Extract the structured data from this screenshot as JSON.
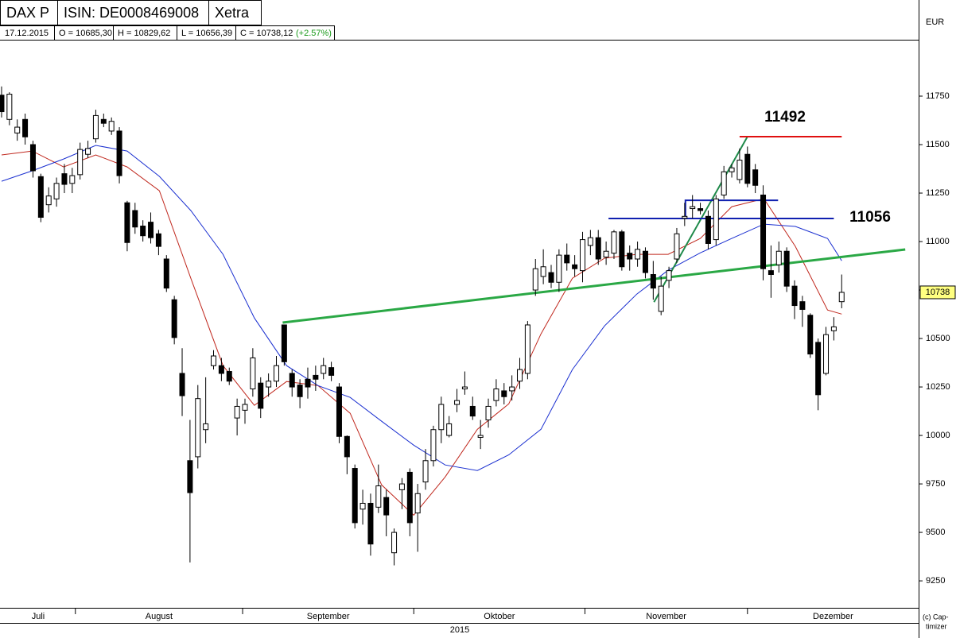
{
  "header": {
    "name": "DAX P",
    "isin": "ISIN: DE0008469008",
    "exchange": "Xetra",
    "currency": "EUR",
    "date": "17.12.2015",
    "open": "O = 10685,30",
    "high": "H = 10829,62",
    "low": "L = 10656,39",
    "close": "C = 10738,12",
    "change": "(+2.57%)"
  },
  "chart_data": {
    "type": "candlestick",
    "year_label": "2015",
    "copyright": [
      "(c) Cap-",
      "timizer"
    ],
    "months": [
      "Juli",
      "August",
      "September",
      "Oktober",
      "November",
      "Dezember"
    ],
    "xlim": [
      -0.2,
      116.8
    ],
    "xticks": [
      9.4,
      30.7,
      52.5,
      74.3,
      95.0
    ],
    "ylim": [
      9111,
      12041
    ],
    "yticks": [
      9250,
      9500,
      9750,
      10000,
      10250,
      10500,
      10750,
      11000,
      11250,
      11500,
      11750
    ],
    "up_color": "#ffffff",
    "down_color": "#000000",
    "ohlc": [
      [
        11755,
        11800,
        11640,
        11670
      ],
      [
        11630,
        11770,
        11600,
        11760
      ],
      [
        11560,
        11630,
        11520,
        11590
      ],
      [
        11630,
        11660,
        11500,
        11540
      ],
      [
        11500,
        11520,
        11330,
        11365
      ],
      [
        11335,
        11350,
        11100,
        11125
      ],
      [
        11190,
        11280,
        11150,
        11235
      ],
      [
        11220,
        11330,
        11180,
        11300
      ],
      [
        11350,
        11400,
        11250,
        11295
      ],
      [
        11300,
        11380,
        11250,
        11340
      ],
      [
        11345,
        11510,
        11320,
        11475
      ],
      [
        11450,
        11520,
        11430,
        11480
      ],
      [
        11530,
        11680,
        11510,
        11650
      ],
      [
        11630,
        11660,
        11590,
        11610
      ],
      [
        11570,
        11640,
        11550,
        11620
      ],
      [
        11570,
        11590,
        11300,
        11340
      ],
      [
        11200,
        11210,
        10950,
        10995
      ],
      [
        11160,
        11200,
        11040,
        11075
      ],
      [
        11080,
        11110,
        11000,
        11030
      ],
      [
        11100,
        11150,
        10990,
        11020
      ],
      [
        11040,
        11060,
        10930,
        10975
      ],
      [
        10910,
        10930,
        10740,
        10760
      ],
      [
        10700,
        10720,
        10470,
        10505
      ],
      [
        10320,
        10450,
        10100,
        10205
      ],
      [
        9870,
        10080,
        9345,
        9705
      ],
      [
        9890,
        10260,
        9830,
        10190
      ],
      [
        10030,
        10300,
        9960,
        10060
      ],
      [
        10360,
        10440,
        10340,
        10410
      ],
      [
        10360,
        10400,
        10280,
        10320
      ],
      [
        10330,
        10350,
        10260,
        10280
      ],
      [
        10090,
        10190,
        10000,
        10150
      ],
      [
        10130,
        10190,
        10060,
        10160
      ],
      [
        10240,
        10450,
        10200,
        10400
      ],
      [
        10270,
        10300,
        10090,
        10140
      ],
      [
        10250,
        10320,
        10200,
        10280
      ],
      [
        10280,
        10410,
        10250,
        10360
      ],
      [
        10570,
        10570,
        10360,
        10380
      ],
      [
        10320,
        10340,
        10200,
        10250
      ],
      [
        10260,
        10290,
        10140,
        10200
      ],
      [
        10290,
        10350,
        10190,
        10250
      ],
      [
        10310,
        10360,
        10230,
        10290
      ],
      [
        10320,
        10400,
        10290,
        10360
      ],
      [
        10350,
        10380,
        10280,
        10310
      ],
      [
        10250,
        10270,
        9960,
        9995
      ],
      [
        9995,
        10000,
        9800,
        9890
      ],
      [
        9830,
        9850,
        9520,
        9550
      ],
      [
        9620,
        9720,
        9540,
        9650
      ],
      [
        9650,
        9700,
        9380,
        9440
      ],
      [
        9630,
        9850,
        9600,
        9740
      ],
      [
        9680,
        9720,
        9480,
        9590
      ],
      [
        9395,
        9520,
        9330,
        9500
      ],
      [
        9720,
        9780,
        9620,
        9750
      ],
      [
        9810,
        9830,
        9480,
        9550
      ],
      [
        9600,
        9750,
        9400,
        9700
      ],
      [
        9760,
        9930,
        9720,
        9870
      ],
      [
        9870,
        10050,
        9840,
        10030
      ],
      [
        10030,
        10200,
        9960,
        10160
      ],
      [
        10000,
        10100,
        9990,
        10060
      ],
      [
        10160,
        10240,
        10120,
        10180
      ],
      [
        10240,
        10330,
        10210,
        10250
      ],
      [
        10150,
        10200,
        10080,
        10100
      ],
      [
        9990,
        10080,
        9930,
        10000
      ],
      [
        10080,
        10190,
        10040,
        10150
      ],
      [
        10180,
        10290,
        10150,
        10240
      ],
      [
        10230,
        10270,
        10160,
        10200
      ],
      [
        10230,
        10310,
        10180,
        10250
      ],
      [
        10280,
        10400,
        10240,
        10340
      ],
      [
        10320,
        10590,
        10290,
        10570
      ],
      [
        10750,
        10910,
        10720,
        10860
      ],
      [
        10820,
        10960,
        10780,
        10870
      ],
      [
        10840,
        10880,
        10760,
        10790
      ],
      [
        10790,
        10960,
        10740,
        10930
      ],
      [
        10930,
        10990,
        10850,
        10890
      ],
      [
        10880,
        10930,
        10820,
        10860
      ],
      [
        10850,
        11050,
        10790,
        11010
      ],
      [
        10980,
        11060,
        10930,
        11020
      ],
      [
        11020,
        11060,
        10880,
        10910
      ],
      [
        10920,
        11000,
        10880,
        10950
      ],
      [
        10940,
        11060,
        10910,
        11050
      ],
      [
        11050,
        11060,
        10850,
        10870
      ],
      [
        10940,
        10980,
        10850,
        10910
      ],
      [
        10910,
        11000,
        10870,
        10960
      ],
      [
        10950,
        10970,
        10810,
        10840
      ],
      [
        10830,
        10900,
        10700,
        10760
      ],
      [
        10640,
        10820,
        10620,
        10770
      ],
      [
        10800,
        10870,
        10760,
        10850
      ],
      [
        10910,
        11070,
        10890,
        11040
      ],
      [
        11120,
        11200,
        11080,
        11130
      ],
      [
        11170,
        11240,
        11120,
        11180
      ],
      [
        11170,
        11200,
        11140,
        11160
      ],
      [
        11130,
        11160,
        10960,
        10990
      ],
      [
        11010,
        11240,
        10980,
        11220
      ],
      [
        11240,
        11390,
        11220,
        11360
      ],
      [
        11360,
        11400,
        11330,
        11380
      ],
      [
        11320,
        11480,
        11300,
        11420
      ],
      [
        11450,
        11490,
        11280,
        11300
      ],
      [
        11370,
        11400,
        11250,
        11290
      ],
      [
        11240,
        11290,
        10800,
        10860
      ],
      [
        10850,
        10980,
        10710,
        10830
      ],
      [
        10880,
        11000,
        10840,
        10950
      ],
      [
        10950,
        10970,
        10740,
        10770
      ],
      [
        10770,
        10800,
        10600,
        10670
      ],
      [
        10690,
        10720,
        10560,
        10650
      ],
      [
        10620,
        10630,
        10400,
        10420
      ],
      [
        10480,
        10500,
        10130,
        10210
      ],
      [
        10320,
        10560,
        10310,
        10520
      ],
      [
        10540,
        10610,
        10490,
        10560
      ],
      [
        10690,
        10830,
        10656,
        10738
      ]
    ],
    "last_price_label": "10738",
    "ma": [
      {
        "color": "#c0281e",
        "x": [
          0,
          3.9,
          7.9,
          12.0,
          16.0,
          20.1,
          24.1,
          28.2,
          32.2,
          36.3,
          40.3,
          44.4,
          48.4,
          52.5,
          56.5,
          60.6,
          64.6,
          68.7,
          72.7,
          76.8,
          80.9,
          84.9,
          89.0,
          93.0,
          97.1,
          101.1,
          105.2,
          107
        ],
        "values": [
          11447,
          11467,
          11385,
          11447,
          11385,
          11262,
          10811,
          10360,
          10155,
          10278,
          10257,
          10114,
          9745,
          9589,
          9786,
          10032,
          10163,
          10524,
          10811,
          10914,
          10934,
          10934,
          11016,
          11180,
          11221,
          10975,
          10647,
          10626
        ]
      },
      {
        "color": "#1a2fd0",
        "x": [
          0,
          3.9,
          7.9,
          12.0,
          16.0,
          20.1,
          24.1,
          28.2,
          32.2,
          36.3,
          40.3,
          44.4,
          48.4,
          52.5,
          56.5,
          60.6,
          64.6,
          68.7,
          72.7,
          76.8,
          80.9,
          84.9,
          89.0,
          93.0,
          97.1,
          101.1,
          105.2,
          107
        ],
        "values": [
          11311,
          11365,
          11426,
          11496,
          11467,
          11336,
          11160,
          10934,
          10606,
          10360,
          10257,
          10196,
          10073,
          9950,
          9848,
          9819,
          9900,
          10032,
          10340,
          10565,
          10729,
          10852,
          10942,
          11016,
          11090,
          11078,
          11016,
          10901
        ]
      }
    ],
    "trendlines": [
      {
        "color": "#2aa845",
        "width": 3,
        "x": [
          35.8,
          115.1
        ],
        "values": [
          10582,
          10959
        ]
      },
      {
        "color": "#1f8a4a",
        "width": 2,
        "x": [
          83.1,
          95.0
        ],
        "values": [
          10688,
          11541
        ]
      },
      {
        "color": "#e01010",
        "width": 2,
        "x": [
          94.0,
          107.0
        ],
        "values": [
          11541,
          11541
        ]
      },
      {
        "color": "#1020b0",
        "width": 2,
        "x": [
          77.3,
          106.0
        ],
        "values": [
          11119,
          11119
        ]
      },
      {
        "color": "#1020b0",
        "width": 2,
        "x": [
          87.1,
          87.1,
          98.9
        ],
        "values": [
          11131,
          11213,
          11213
        ]
      }
    ],
    "annotations": [
      "11492",
      "11056"
    ]
  }
}
